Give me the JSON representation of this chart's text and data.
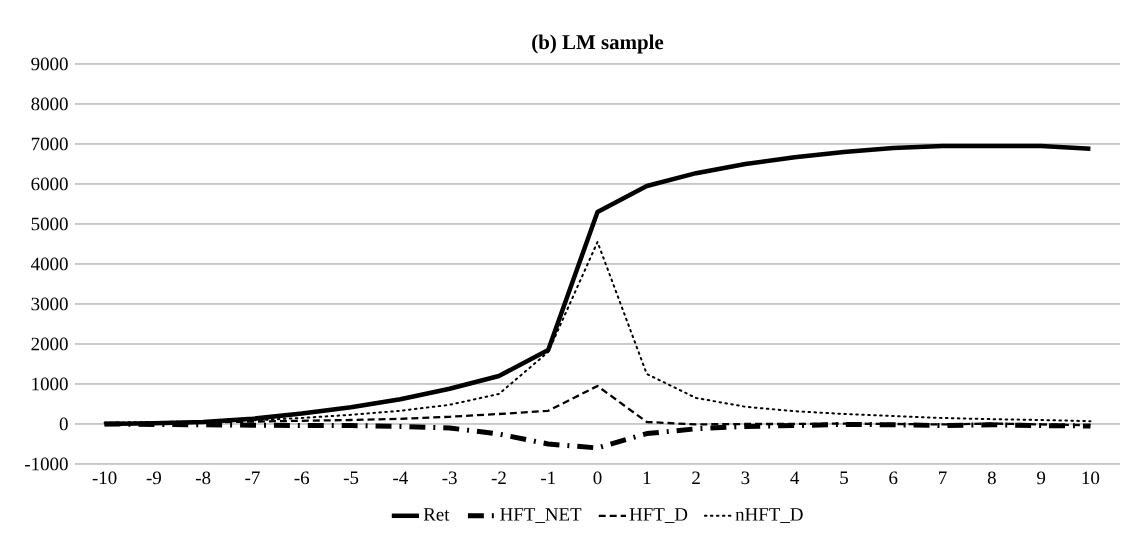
{
  "chart_data": {
    "type": "line",
    "title": "(b) LM sample",
    "categories": [
      "-10",
      "-9",
      "-8",
      "-7",
      "-6",
      "-5",
      "-4",
      "-3",
      "-2",
      "-1",
      "0",
      "1",
      "2",
      "3",
      "4",
      "5",
      "6",
      "7",
      "8",
      "9",
      "10"
    ],
    "series": [
      {
        "name": "Ret",
        "color": "#000000",
        "line_style": "solid",
        "values": [
          0,
          20,
          50,
          130,
          260,
          420,
          620,
          880,
          1200,
          1850,
          5300,
          5950,
          6270,
          6500,
          6670,
          6800,
          6900,
          6950,
          6950,
          6950,
          6880
        ]
      },
      {
        "name": "HFT_NET",
        "color": "#000000",
        "line_style": "dashed",
        "values": [
          0,
          -10,
          -20,
          -30,
          -40,
          -40,
          -60,
          -100,
          -250,
          -500,
          -600,
          -240,
          -120,
          -60,
          -40,
          -10,
          -20,
          -40,
          -20,
          -40,
          -50
        ]
      },
      {
        "name": "HFT_D",
        "color": "#000000",
        "line_style": "dashed",
        "values": [
          0,
          20,
          40,
          60,
          80,
          100,
          130,
          180,
          250,
          330,
          950,
          50,
          -10,
          0,
          0,
          10,
          0,
          -10,
          10,
          -10,
          -30
        ]
      },
      {
        "name": "nHFT_D",
        "color": "#000000",
        "line_style": "dotted",
        "values": [
          30,
          50,
          60,
          90,
          150,
          230,
          330,
          480,
          750,
          1800,
          4550,
          1250,
          650,
          430,
          320,
          250,
          200,
          150,
          120,
          100,
          70
        ]
      }
    ],
    "ylim": [
      -1000,
      9000
    ],
    "yticks": [
      -1000,
      0,
      1000,
      2000,
      3000,
      4000,
      5000,
      6000,
      7000,
      8000,
      9000
    ],
    "grid": "y",
    "legend": "bottom",
    "marker": "none"
  }
}
